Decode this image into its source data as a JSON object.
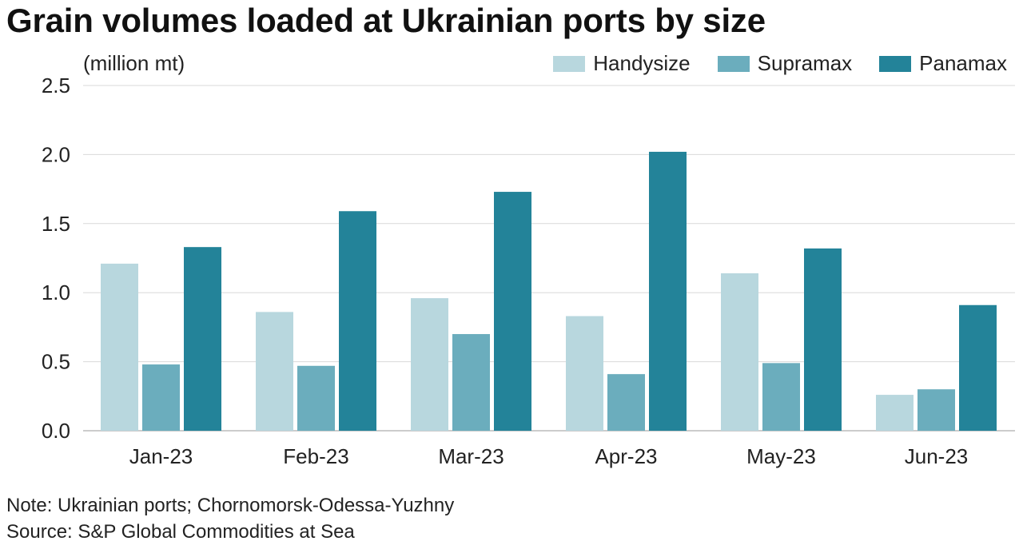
{
  "title": "Grain volumes loaded at Ukrainian ports by size",
  "unit_label": "(million mt)",
  "legend": [
    {
      "label": "Handysize",
      "color": "#b8d7de"
    },
    {
      "label": "Supramax",
      "color": "#6badbd"
    },
    {
      "label": "Panamax",
      "color": "#238399"
    }
  ],
  "footer": {
    "note": "Note: Ukrainian ports; Chornomorsk-Odessa-Yuzhny",
    "source": "Source: S&P Global Commodities at Sea"
  },
  "chart_data": {
    "type": "bar",
    "title": "Grain volumes loaded at Ukrainian ports by size",
    "ylabel": "(million mt)",
    "xlabel": "",
    "categories": [
      "Jan-23",
      "Feb-23",
      "Mar-23",
      "Apr-23",
      "May-23",
      "Jun-23"
    ],
    "series": [
      {
        "name": "Handysize",
        "color": "#b8d7de",
        "values": [
          1.21,
          0.86,
          0.96,
          0.83,
          1.14,
          0.26
        ]
      },
      {
        "name": "Supramax",
        "color": "#6badbd",
        "values": [
          0.48,
          0.47,
          0.7,
          0.41,
          0.49,
          0.3
        ]
      },
      {
        "name": "Panamax",
        "color": "#238399",
        "values": [
          1.33,
          1.59,
          1.73,
          2.02,
          1.32,
          0.91
        ]
      }
    ],
    "ylim": [
      0,
      2.5
    ],
    "yticks": [
      "0.0",
      "0.5",
      "1.0",
      "1.5",
      "2.0",
      "2.5"
    ],
    "ytick_values": [
      0,
      0.5,
      1.0,
      1.5,
      2.0,
      2.5
    ],
    "grid": true,
    "legend_position": "top-right"
  }
}
